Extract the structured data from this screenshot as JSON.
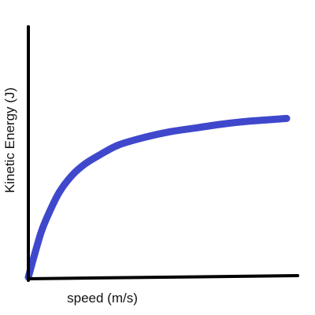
{
  "chart_data": {
    "type": "line",
    "title": "",
    "xlabel": "speed (m/s)",
    "ylabel": "Kinetic Energy (J)",
    "xlim": [
      0,
      100
    ],
    "ylim": [
      0,
      100
    ],
    "grid": false,
    "legend": "none",
    "colors": {
      "line": "#3f48cc",
      "axis": "#000000",
      "text": "#111111"
    },
    "series": [
      {
        "x": [
          0,
          2,
          5,
          8,
          12,
          17,
          22,
          28,
          35,
          45,
          55,
          65,
          75,
          85,
          100
        ],
        "y": [
          0,
          10,
          24,
          34,
          45,
          54,
          60,
          65,
          70,
          74,
          77,
          79,
          81,
          82.5,
          84
        ]
      }
    ]
  }
}
